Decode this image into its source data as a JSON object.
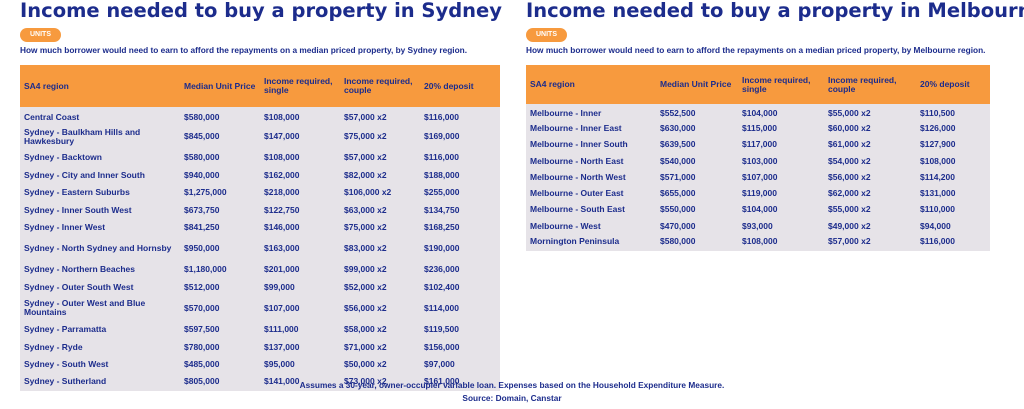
{
  "sydney": {
    "title": "Income needed to buy a property in Sydney",
    "badge": "UNITS",
    "subtitle": "How much borrower would need to earn to afford the repayments on a median priced property, by Sydney region.",
    "headers": [
      "SA4 region",
      "Median Unit Price",
      "Income required, single",
      "Income required, couple",
      "20% deposit"
    ],
    "rows": [
      {
        "region": "Central Coast",
        "price": "$580,000",
        "single": "$108,000",
        "couple": "$57,000 x2",
        "deposit": "$116,000"
      },
      {
        "region": "Sydney - Baulkham Hills and Hawkesbury",
        "price": "$845,000",
        "single": "$147,000",
        "couple": "$75,000 x2",
        "deposit": "$169,000"
      },
      {
        "region": "Sydney - Backtown",
        "price": "$580,000",
        "single": "$108,000",
        "couple": "$57,000 x2",
        "deposit": "$116,000"
      },
      {
        "region": "Sydney - City and Inner South",
        "price": "$940,000",
        "single": "$162,000",
        "couple": "$82,000 x2",
        "deposit": "$188,000"
      },
      {
        "region": "Sydney - Eastern Suburbs",
        "price": "$1,275,000",
        "single": "$218,000",
        "couple": "$106,000 x2",
        "deposit": "$255,000"
      },
      {
        "region": "Sydney - Inner South West",
        "price": "$673,750",
        "single": "$122,750",
        "couple": "$63,000 x2",
        "deposit": "$134,750"
      },
      {
        "region": "Sydney - Inner West",
        "price": "$841,250",
        "single": "$146,000",
        "couple": "$75,000 x2",
        "deposit": "$168,250"
      },
      {
        "region": "Sydney - North Sydney and Hornsby",
        "price": "$950,000",
        "single": "$163,000",
        "couple": "$83,000 x2",
        "deposit": "$190,000"
      },
      {
        "region": "Sydney - Northern Beaches",
        "price": "$1,180,000",
        "single": "$201,000",
        "couple": "$99,000 x2",
        "deposit": "$236,000"
      },
      {
        "region": "Sydney - Outer South West",
        "price": "$512,000",
        "single": "$99,000",
        "couple": "$52,000 x2",
        "deposit": "$102,400"
      },
      {
        "region": "Sydney - Outer West and Blue Mountains",
        "price": "$570,000",
        "single": "$107,000",
        "couple": "$56,000 x2",
        "deposit": "$114,000"
      },
      {
        "region": "Sydney - Parramatta",
        "price": "$597,500",
        "single": "$111,000",
        "couple": "$58,000 x2",
        "deposit": "$119,500"
      },
      {
        "region": "Sydney - Ryde",
        "price": "$780,000",
        "single": "$137,000",
        "couple": "$71,000 x2",
        "deposit": "$156,000"
      },
      {
        "region": "Sydney - South West",
        "price": "$485,000",
        "single": "$95,000",
        "couple": "$50,000 x2",
        "deposit": "$97,000"
      },
      {
        "region": "Sydney - Sutherland",
        "price": "$805,000",
        "single": "$141,000",
        "couple": "$73,000 x2",
        "deposit": "$161,000"
      }
    ]
  },
  "melbourne": {
    "title": "Income needed to buy a property in Melbourne",
    "badge": "UNITS",
    "subtitle": "How much borrower would need to earn to afford the repayments on a median priced property, by Melbourne region.",
    "headers": [
      "SA4 region",
      "Median Unit Price",
      "Income required, single",
      "Income required, couple",
      "20% deposit"
    ],
    "rows": [
      {
        "region": "Melbourne - Inner",
        "price": "$552,500",
        "single": "$104,000",
        "couple": "$55,000 x2",
        "deposit": "$110,500"
      },
      {
        "region": "Melbourne - Inner East",
        "price": "$630,000",
        "single": "$115,000",
        "couple": "$60,000 x2",
        "deposit": "$126,000"
      },
      {
        "region": "Melbourne - Inner South",
        "price": "$639,500",
        "single": "$117,000",
        "couple": "$61,000 x2",
        "deposit": "$127,900"
      },
      {
        "region": "Melbourne - North East",
        "price": "$540,000",
        "single": "$103,000",
        "couple": "$54,000 x2",
        "deposit": "$108,000"
      },
      {
        "region": "Melbourne - North West",
        "price": "$571,000",
        "single": "$107,000",
        "couple": "$56,000 x2",
        "deposit": "$114,200"
      },
      {
        "region": "Melbourne - Outer East",
        "price": "$655,000",
        "single": "$119,000",
        "couple": "$62,000 x2",
        "deposit": "$131,000"
      },
      {
        "region": "Melbourne - South East",
        "price": "$550,000",
        "single": "$104,000",
        "couple": "$55,000 x2",
        "deposit": "$110,000"
      },
      {
        "region": "Melbourne - West",
        "price": "$470,000",
        "single": "$93,000",
        "couple": "$49,000 x2",
        "deposit": "$94,000"
      },
      {
        "region": "Mornington Peninsula",
        "price": "$580,000",
        "single": "$108,000",
        "couple": "$57,000 x2",
        "deposit": "$116,000"
      }
    ]
  },
  "footer": {
    "note": "Assumes a 30-year, owner-occupier variable loan. Expenses based on the Household Expenditure  Measure.",
    "source": "Source: Domain, Canstar"
  },
  "colors": {
    "accent": "#f79a3e",
    "navy": "#1c2c8c",
    "row_bg": "#e6e3e8"
  }
}
